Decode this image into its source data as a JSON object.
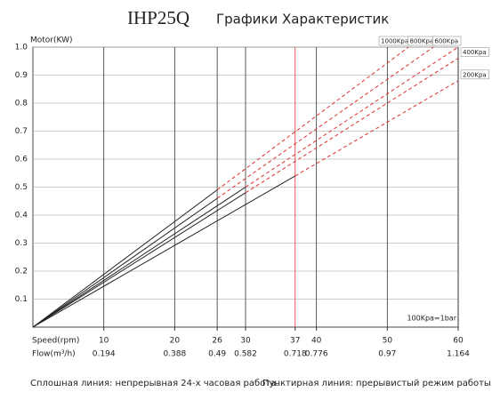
{
  "chart_data": {
    "type": "line",
    "title": "IHP25Q",
    "subtitle": "Графики Характеристик",
    "ylabel": "Motor(KW)",
    "xlabel": "Speed(rpm)",
    "x2label": "Flow(m³/h)",
    "xlim": [
      0,
      60
    ],
    "ylim": [
      0,
      1
    ],
    "xticks": [
      10,
      20,
      26,
      30,
      37,
      40,
      50,
      60
    ],
    "x2ticks": [
      0.194,
      0.388,
      0.49,
      0.582,
      0.718,
      0.776,
      0.97,
      1.164
    ],
    "highlight_xtick": 37,
    "highlight_color": "#e03030",
    "yticks": [
      0.1,
      0.2,
      0.3,
      0.4,
      0.5,
      0.6,
      0.7,
      0.8,
      0.9,
      {
        "value": 1,
        "label": "1.0"
      }
    ],
    "grid": true,
    "solid_color": "#222222",
    "dashed_color": "#e03030",
    "series": [
      {
        "name": "1000Kpa",
        "x": [
          0,
          26,
          53
        ],
        "values": [
          0,
          0.49,
          1.0
        ],
        "solid_points": 2
      },
      {
        "name": "800Kpa",
        "x": [
          0,
          26,
          56.5
        ],
        "values": [
          0,
          0.46,
          1.0
        ],
        "solid_points": 2
      },
      {
        "name": "600Kpa",
        "x": [
          0,
          30,
          60
        ],
        "values": [
          0,
          0.5,
          1.0
        ],
        "solid_points": 2
      },
      {
        "name": "400Kpa",
        "x": [
          0,
          30,
          60
        ],
        "values": [
          0,
          0.48,
          0.96
        ],
        "solid_points": 2
      },
      {
        "name": "200Kpa",
        "x": [
          0,
          37,
          60
        ],
        "values": [
          0,
          0.54,
          0.88
        ],
        "solid_points": 2
      }
    ],
    "annotation": "100Kpa=1bar",
    "notes": [
      "Сплошная линия: непрерывная 24-х часовая работа.",
      "Пунктирная линия: прерывистый режим работы."
    ]
  }
}
